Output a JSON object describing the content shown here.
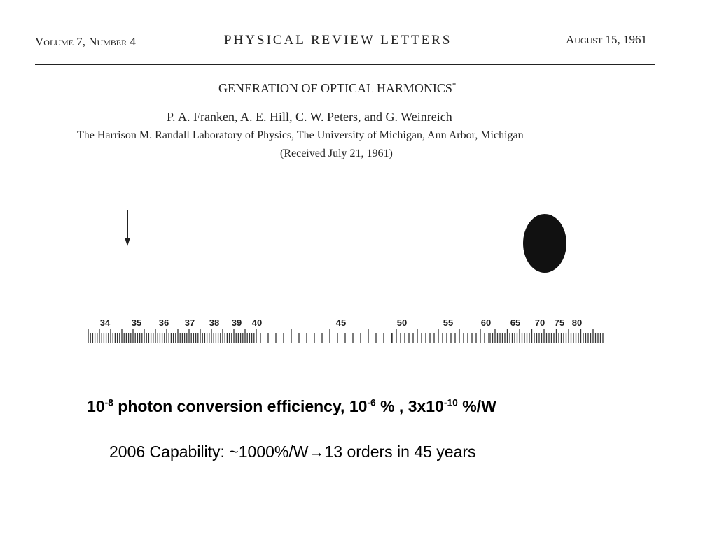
{
  "header": {
    "volume": "Volume 7, Number 4",
    "journal": "PHYSICAL REVIEW LETTERS",
    "date": "August 15, 1961"
  },
  "paper": {
    "title": "GENERATION OF OPTICAL HARMONICS",
    "title_mark": "*",
    "authors": "P. A. Franken, A. E. Hill, C. W. Peters, and G. Weinreich",
    "affiliation": "The Harrison M. Randall Laboratory of Physics, The University of Michigan, Ann Arbor, Michigan",
    "received": "(Received July 21, 1961)"
  },
  "scale_labels": [
    34,
    35,
    36,
    37,
    38,
    39,
    40,
    45,
    50,
    55,
    60,
    65,
    70,
    75,
    80
  ],
  "caption": {
    "runs": [
      "10",
      "-8",
      " photon conversion efficiency, 10",
      "-6",
      " % , 3x10",
      "-10",
      " %/W"
    ]
  },
  "note": "2006 Capability: ~1000%/W→13 orders in 45 years"
}
